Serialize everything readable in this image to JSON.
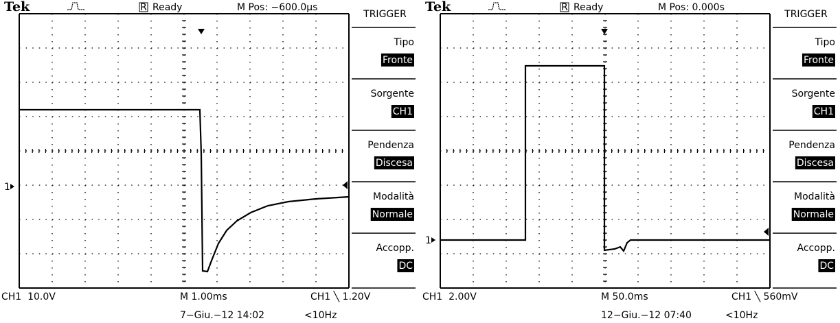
{
  "screens": [
    {
      "header": {
        "brand": "Tek",
        "run_state": "R",
        "status": "Ready",
        "position": "M Pos: −600.0µs"
      },
      "menu": {
        "title": "TRIGGER",
        "items": [
          {
            "label": "Tipo",
            "value": "Fronte"
          },
          {
            "label": "Sorgente",
            "value": "CH1"
          },
          {
            "label": "Pendenza",
            "value": "Discesa"
          },
          {
            "label": "Modalità",
            "value": "Normale"
          },
          {
            "label": "Accopp.",
            "value": "DC"
          }
        ]
      },
      "channel_marker": "1",
      "footer": {
        "channel_scale": "CH1  10.0V",
        "timebase": "M 1.00ms",
        "trigger": "CH1 ╲ 1.20V",
        "date": "7−Giu.−12 14:02",
        "frequency": "<10Hz"
      }
    },
    {
      "header": {
        "brand": "Tek",
        "run_state": "R",
        "status": "Ready",
        "position": "M Pos: 0.000s"
      },
      "menu": {
        "title": "TRIGGER",
        "items": [
          {
            "label": "Tipo",
            "value": "Fronte"
          },
          {
            "label": "Sorgente",
            "value": "CH1"
          },
          {
            "label": "Pendenza",
            "value": "Discesa"
          },
          {
            "label": "Modalità",
            "value": "Normale"
          },
          {
            "label": "Accopp.",
            "value": "DC"
          }
        ]
      },
      "channel_marker": "1",
      "footer": {
        "channel_scale": "CH1  2.00V",
        "timebase": "M 50.0ms",
        "trigger": "CH1 ╲ 560mV",
        "date": "12−Giu.−12 07:40",
        "frequency": "<10Hz"
      }
    }
  ]
}
